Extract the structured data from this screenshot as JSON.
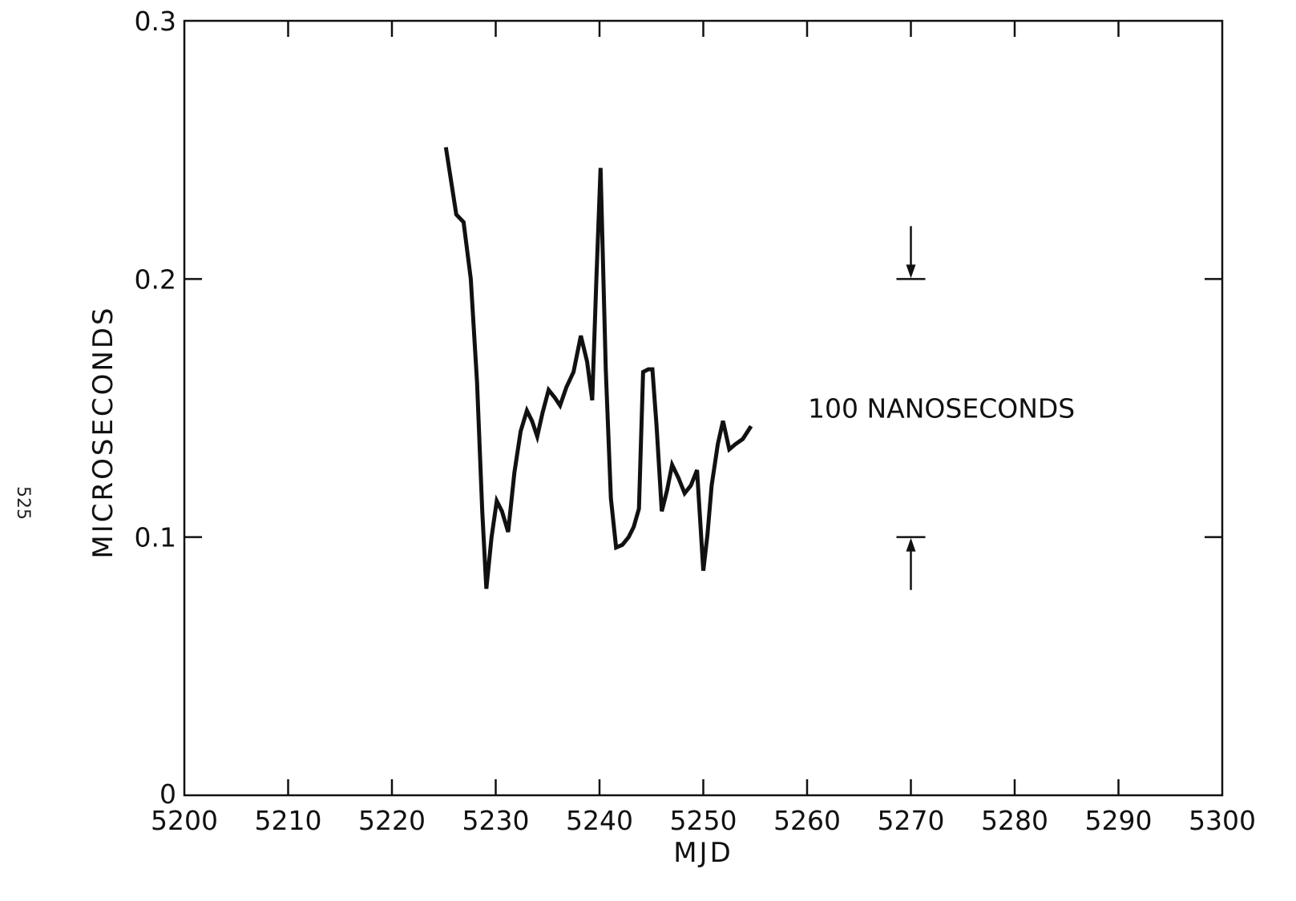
{
  "page_number": "525",
  "chart_data": {
    "type": "line",
    "title": "",
    "xlabel": "MJD",
    "ylabel": "MICROSECONDS",
    "xlim": [
      5200,
      5300
    ],
    "ylim": [
      0,
      0.3
    ],
    "x_ticks": [
      5200,
      5210,
      5220,
      5230,
      5240,
      5250,
      5260,
      5270,
      5280,
      5290,
      5300
    ],
    "x_tick_labels": [
      "5200",
      "5210",
      "5220",
      "5230",
      "5240",
      "5250",
      "5260",
      "5270",
      "5280",
      "5290",
      "5300"
    ],
    "y_ticks": [
      0,
      0.1,
      0.2,
      0.3
    ],
    "y_tick_labels": [
      "0",
      "0.1",
      "0.2",
      "0.3"
    ],
    "grid": false,
    "line_color": "#111111",
    "series": [
      {
        "x": [
          5225.2,
          5226.2,
          5226.9,
          5227.6,
          5228.2,
          5228.7,
          5229.1,
          5229.6,
          5230.1,
          5230.6,
          5231.2,
          5231.8,
          5232.4,
          5233.0,
          5233.5,
          5234.0,
          5234.5,
          5235.1,
          5235.7,
          5236.2,
          5236.8,
          5237.5,
          5238.2,
          5238.8,
          5239.3,
          5239.7,
          5240.1,
          5240.6,
          5241.1,
          5241.6,
          5242.2,
          5242.8,
          5243.3,
          5243.8,
          5244.2,
          5244.7,
          5245.1,
          5245.5,
          5246.0,
          5246.5,
          5247.0,
          5247.6,
          5248.2,
          5248.8,
          5249.4,
          5250.0,
          5250.4,
          5250.8,
          5251.4,
          5251.9,
          5252.5,
          5253.1,
          5253.8,
          5254.6
        ],
        "y": [
          0.251,
          0.225,
          0.222,
          0.2,
          0.16,
          0.11,
          0.08,
          0.1,
          0.114,
          0.11,
          0.102,
          0.125,
          0.141,
          0.149,
          0.145,
          0.139,
          0.148,
          0.157,
          0.154,
          0.151,
          0.158,
          0.164,
          0.178,
          0.168,
          0.153,
          0.2,
          0.243,
          0.165,
          0.115,
          0.096,
          0.097,
          0.1,
          0.104,
          0.111,
          0.164,
          0.165,
          0.165,
          0.143,
          0.11,
          0.118,
          0.128,
          0.123,
          0.117,
          0.12,
          0.126,
          0.087,
          0.101,
          0.12,
          0.136,
          0.145,
          0.134,
          0.136,
          0.138,
          0.143
        ]
      }
    ],
    "annotations": [
      {
        "text": "100 NANOSECONDS"
      }
    ],
    "scale_bar": {
      "x": 5270,
      "y_top": 0.2,
      "y_bottom": 0.1
    }
  }
}
